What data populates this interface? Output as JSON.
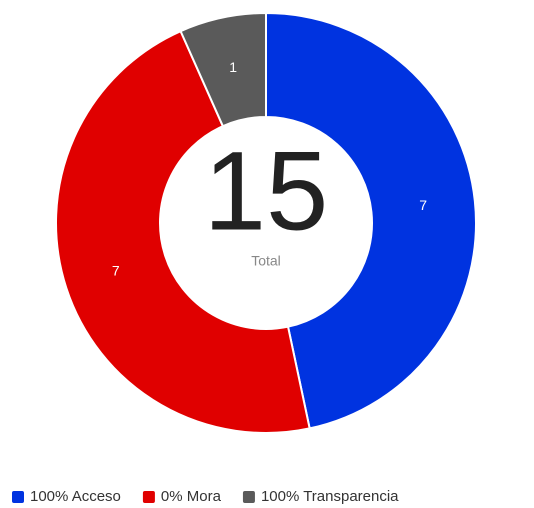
{
  "chart_data": {
    "type": "donut",
    "categories": [
      "100% Acceso",
      "0% Mora",
      "100% Transparencia"
    ],
    "values": [
      7,
      7,
      1
    ],
    "colors": [
      "#0033e0",
      "#e00000",
      "#5a5a5a"
    ],
    "total": 15,
    "total_label": "Total",
    "legend": "bottom"
  }
}
